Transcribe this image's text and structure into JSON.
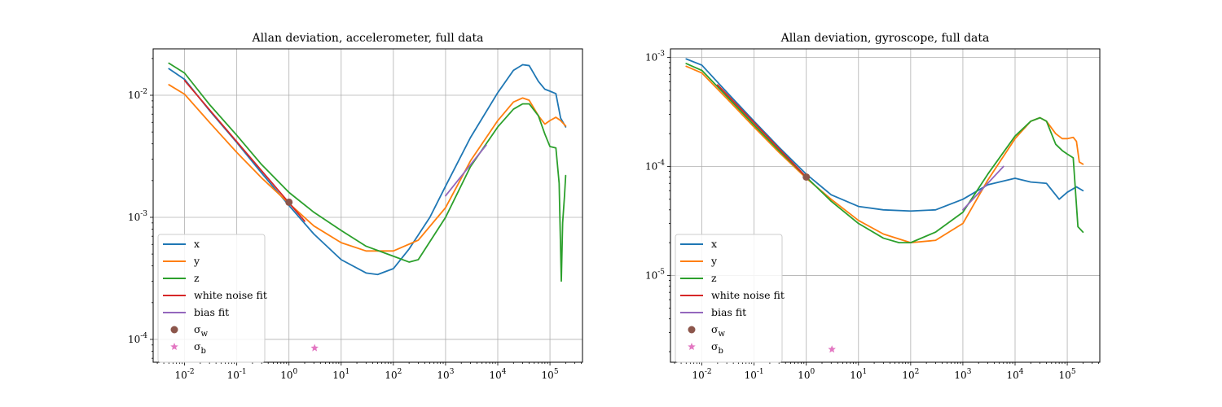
{
  "chart_data": [
    {
      "type": "line",
      "title": "Allan deviation, accelerometer, full data",
      "xlabel": "",
      "ylabel": "",
      "xscale": "log",
      "yscale": "log",
      "xlim": [
        0.0025,
        420000
      ],
      "ylim": [
        6.5e-05,
        0.024
      ],
      "xticks": [
        {
          "value": 0.01,
          "label": "10^{-2}"
        },
        {
          "value": 0.1,
          "label": "10^{-1}"
        },
        {
          "value": 1,
          "label": "10^{0}"
        },
        {
          "value": 10,
          "label": "10^{1}"
        },
        {
          "value": 100,
          "label": "10^{2}"
        },
        {
          "value": 1000,
          "label": "10^{3}"
        },
        {
          "value": 10000,
          "label": "10^{4}"
        },
        {
          "value": 100000,
          "label": "10^{5}"
        }
      ],
      "yticks": [
        {
          "value": 0.0001,
          "label": "10^{-4}"
        },
        {
          "value": 0.001,
          "label": "10^{-3}"
        },
        {
          "value": 0.01,
          "label": "10^{-2}"
        }
      ],
      "grid": true,
      "legend_position": "lower-left",
      "series": [
        {
          "name": "x",
          "color": "#1f77b4",
          "x": [
            0.005,
            0.01,
            0.03,
            0.1,
            0.3,
            1,
            3,
            10,
            30,
            50,
            100,
            200,
            500,
            1000,
            3000,
            10000,
            20000,
            30000,
            40000,
            60000,
            80000,
            100000,
            130000,
            160000,
            200000
          ],
          "y": [
            0.0165,
            0.0135,
            0.0075,
            0.0041,
            0.0023,
            0.00125,
            0.00073,
            0.00045,
            0.00035,
            0.00034,
            0.00038,
            0.00055,
            0.001,
            0.0018,
            0.0045,
            0.0105,
            0.016,
            0.0178,
            0.0175,
            0.013,
            0.0112,
            0.0108,
            0.0103,
            0.0065,
            0.0055
          ]
        },
        {
          "name": "y",
          "color": "#ff7f0e",
          "x": [
            0.005,
            0.01,
            0.03,
            0.1,
            0.3,
            1,
            3,
            10,
            30,
            100,
            300,
            1000,
            3000,
            10000,
            20000,
            30000,
            40000,
            60000,
            80000,
            100000,
            130000,
            160000,
            200000
          ],
          "y": [
            0.0122,
            0.0102,
            0.006,
            0.0034,
            0.0021,
            0.0013,
            0.00085,
            0.00062,
            0.00053,
            0.00053,
            0.00065,
            0.0012,
            0.0029,
            0.0062,
            0.0088,
            0.0095,
            0.0091,
            0.0068,
            0.0058,
            0.0062,
            0.0066,
            0.0062,
            0.0056
          ]
        },
        {
          "name": "z",
          "color": "#2ca02c",
          "x": [
            0.005,
            0.01,
            0.03,
            0.1,
            0.3,
            1,
            3,
            10,
            30,
            100,
            200,
            300,
            1000,
            3000,
            10000,
            20000,
            30000,
            40000,
            60000,
            80000,
            100000,
            130000,
            150000,
            165000,
            175000,
            190000,
            200000
          ],
          "y": [
            0.0183,
            0.0152,
            0.0084,
            0.0047,
            0.0027,
            0.0016,
            0.0011,
            0.00078,
            0.00058,
            0.00048,
            0.00043,
            0.00045,
            0.001,
            0.0026,
            0.0055,
            0.0077,
            0.0085,
            0.0085,
            0.0068,
            0.0048,
            0.0038,
            0.0037,
            0.0019,
            0.0003,
            0.0009,
            0.0015,
            0.0022
          ]
        },
        {
          "name": "white noise fit",
          "color": "#d62728",
          "x": [
            0.01,
            2
          ],
          "y": [
            0.0132,
            0.00093
          ]
        },
        {
          "name": "bias fit",
          "color": "#9467bd",
          "x": [
            1000,
            6000
          ],
          "y": [
            0.0015,
            0.0039
          ]
        },
        {
          "name": "σ_w",
          "color": "#8c564b",
          "marker": "circle",
          "x": [
            1
          ],
          "y": [
            0.00133
          ]
        },
        {
          "name": "σ_b",
          "color": "#e377c2",
          "marker": "star",
          "x": [
            3.1
          ],
          "y": [
            8.5e-05
          ]
        }
      ]
    },
    {
      "type": "line",
      "title": "Allan deviation, gyroscope, full data",
      "xlabel": "",
      "ylabel": "",
      "xscale": "log",
      "yscale": "log",
      "xlim": [
        0.0025,
        420000
      ],
      "ylim": [
        1.6e-06,
        0.0012
      ],
      "xticks": [
        {
          "value": 0.01,
          "label": "10^{-2}"
        },
        {
          "value": 0.1,
          "label": "10^{-1}"
        },
        {
          "value": 1,
          "label": "10^{0}"
        },
        {
          "value": 10,
          "label": "10^{1}"
        },
        {
          "value": 100,
          "label": "10^{2}"
        },
        {
          "value": 1000,
          "label": "10^{3}"
        },
        {
          "value": 10000,
          "label": "10^{4}"
        },
        {
          "value": 100000,
          "label": "10^{5}"
        }
      ],
      "yticks": [
        {
          "value": 1e-05,
          "label": "10^{-5}"
        },
        {
          "value": 0.0001,
          "label": "10^{-4}"
        },
        {
          "value": 0.001,
          "label": "10^{-3}"
        }
      ],
      "grid": true,
      "legend_position": "lower-left",
      "series": [
        {
          "name": "x",
          "color": "#1f77b4",
          "x": [
            0.005,
            0.01,
            0.03,
            0.1,
            0.3,
            1,
            3,
            10,
            30,
            100,
            300,
            1000,
            3000,
            10000,
            20000,
            40000,
            70000,
            100000,
            150000,
            200000
          ],
          "y": [
            0.00097,
            0.00085,
            0.00048,
            0.00026,
            0.00015,
            8.5e-05,
            5.5e-05,
            4.3e-05,
            4e-05,
            3.9e-05,
            4e-05,
            5e-05,
            6.8e-05,
            7.8e-05,
            7.2e-05,
            7e-05,
            5e-05,
            5.8e-05,
            6.5e-05,
            6e-05
          ]
        },
        {
          "name": "y",
          "color": "#ff7f0e",
          "x": [
            0.005,
            0.01,
            0.03,
            0.1,
            0.3,
            1,
            3,
            10,
            30,
            100,
            300,
            1000,
            3000,
            10000,
            20000,
            30000,
            40000,
            60000,
            80000,
            100000,
            130000,
            150000,
            170000,
            200000
          ],
          "y": [
            0.00083,
            0.00072,
            0.00042,
            0.00023,
            0.000135,
            7.8e-05,
            5e-05,
            3.2e-05,
            2.4e-05,
            2e-05,
            2.1e-05,
            3e-05,
            7.5e-05,
            0.00018,
            0.00026,
            0.00028,
            0.00026,
            0.0002,
            0.00018,
            0.00018,
            0.000185,
            0.00017,
            0.00011,
            0.000105
          ]
        },
        {
          "name": "z",
          "color": "#2ca02c",
          "x": [
            0.005,
            0.01,
            0.03,
            0.1,
            0.3,
            1,
            3,
            10,
            30,
            60,
            100,
            300,
            1000,
            3000,
            10000,
            20000,
            30000,
            40000,
            60000,
            80000,
            100000,
            130000,
            160000,
            200000
          ],
          "y": [
            0.00088,
            0.00076,
            0.00044,
            0.00024,
            0.00014,
            8e-05,
            4.8e-05,
            3e-05,
            2.2e-05,
            2e-05,
            2e-05,
            2.5e-05,
            3.8e-05,
            8.5e-05,
            0.00019,
            0.00026,
            0.00028,
            0.00026,
            0.00016,
            0.00014,
            0.00013,
            0.00012,
            2.8e-05,
            2.5e-05
          ]
        },
        {
          "name": "white noise fit",
          "color": "#d62728",
          "x": [
            0.02,
            1
          ],
          "y": [
            0.00056,
            8e-05
          ]
        },
        {
          "name": "bias fit",
          "color": "#9467bd",
          "x": [
            1000,
            6000
          ],
          "y": [
            4e-05,
            0.0001
          ]
        },
        {
          "name": "σ_w",
          "color": "#8c564b",
          "marker": "circle",
          "x": [
            1
          ],
          "y": [
            8e-05
          ]
        },
        {
          "name": "σ_b",
          "color": "#e377c2",
          "marker": "star",
          "x": [
            3.1
          ],
          "y": [
            2.1e-06
          ]
        }
      ]
    }
  ]
}
